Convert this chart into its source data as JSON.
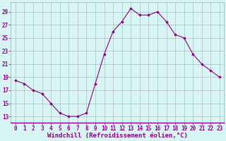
{
  "hours": [
    0,
    1,
    2,
    3,
    4,
    5,
    6,
    7,
    8,
    9,
    10,
    11,
    12,
    13,
    14,
    15,
    16,
    17,
    18,
    19,
    20,
    21,
    22,
    23
  ],
  "values": [
    18.5,
    18.0,
    17.0,
    16.5,
    15.0,
    13.5,
    13.0,
    13.0,
    13.5,
    18.0,
    22.5,
    26.0,
    27.5,
    29.5,
    28.5,
    28.5,
    29.0,
    27.5,
    25.5,
    25.0,
    22.5,
    21.0,
    20.0,
    19.0
  ],
  "line_color": "#880088",
  "marker": "D",
  "marker_size": 1.8,
  "bg_color": "#d8f5f5",
  "grid_color": "#aaaaaa",
  "xlabel": "Windchill (Refroidissement éolien,°C)",
  "yticks": [
    13,
    15,
    17,
    19,
    21,
    23,
    25,
    27,
    29
  ],
  "xticks": [
    0,
    1,
    2,
    3,
    4,
    5,
    6,
    7,
    8,
    9,
    10,
    11,
    12,
    13,
    14,
    15,
    16,
    17,
    18,
    19,
    20,
    21,
    22,
    23
  ],
  "ylim": [
    12.0,
    30.5
  ],
  "xlim": [
    -0.5,
    23.5
  ],
  "xlabel_color": "#880088",
  "xlabel_fontsize": 6.5,
  "tick_color": "#880088",
  "tick_fontsize": 5.5,
  "spine_color": "#880088",
  "line_width": 0.8
}
